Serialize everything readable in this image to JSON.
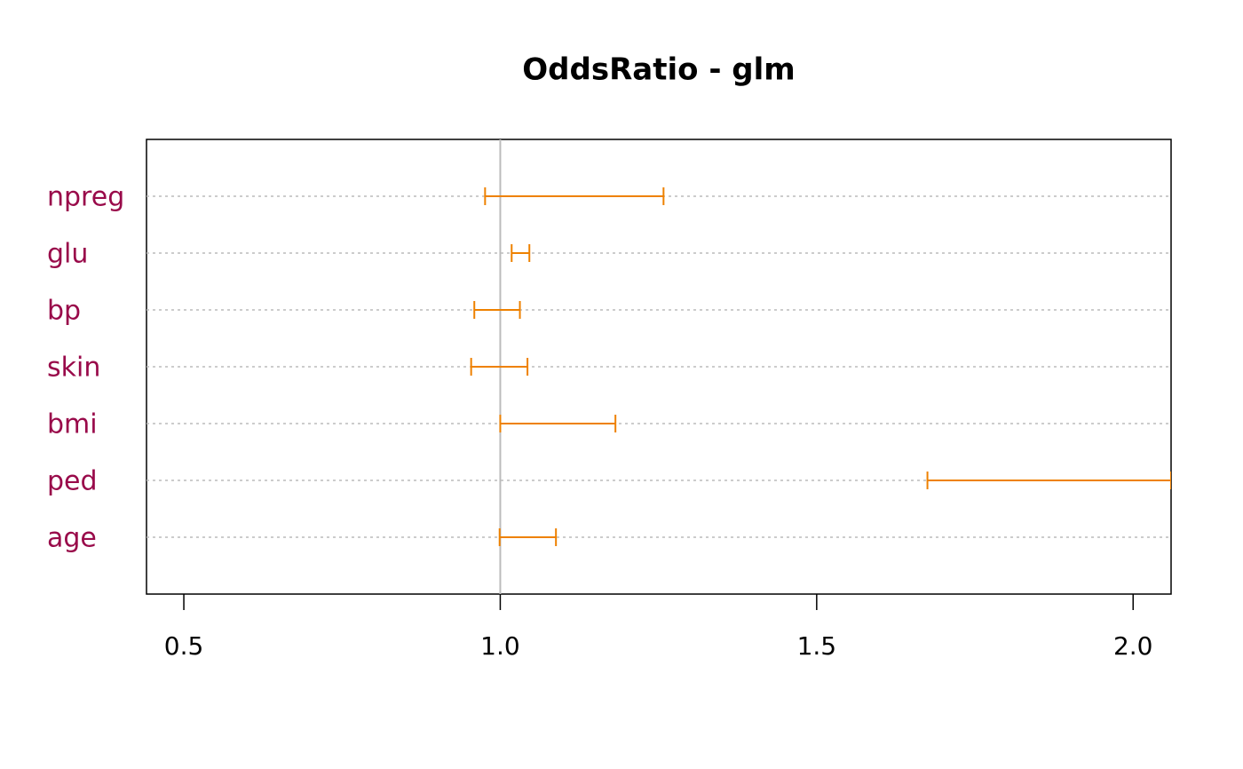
{
  "chart_data": {
    "type": "interval",
    "title": "OddsRatio - glm",
    "categories": [
      "npreg",
      "glu",
      "bp",
      "skin",
      "bmi",
      "ped",
      "age"
    ],
    "lower": [
      0.976,
      1.018,
      0.959,
      0.954,
      1.0,
      1.675,
      0.999
    ],
    "upper": [
      1.258,
      1.046,
      1.031,
      1.043,
      1.182,
      2.06,
      1.088
    ],
    "color": "#ee8100",
    "label_color": "#990a4a",
    "reference_line": 1,
    "xlim": [
      0.441,
      2.06
    ],
    "xticks": [
      {
        "value": 0.5,
        "label": "0.5"
      },
      {
        "value": 1,
        "label": "1.0"
      },
      {
        "value": 1.5,
        "label": "1.5"
      },
      {
        "value": 2,
        "label": "2.0"
      }
    ],
    "grid": true
  }
}
